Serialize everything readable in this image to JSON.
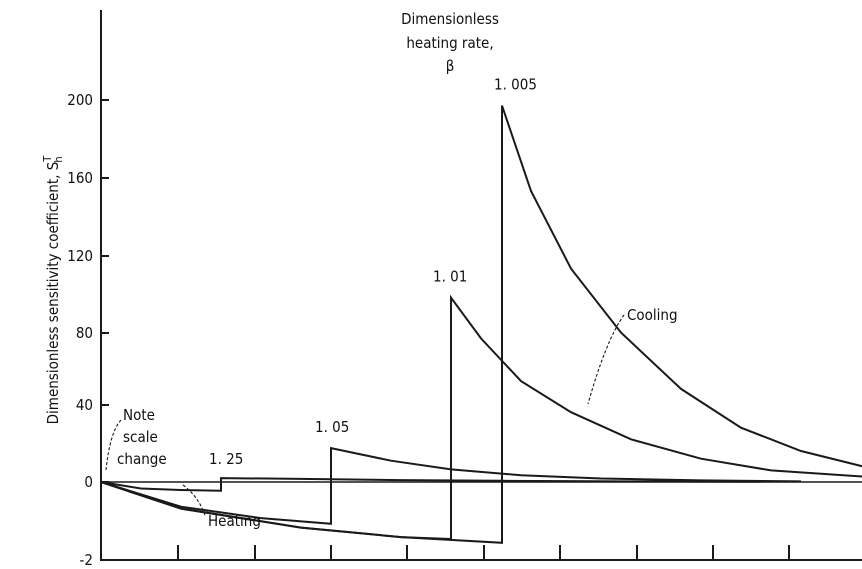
{
  "chart_data": {
    "type": "line",
    "title": "",
    "ylabel": "Dimensionless sensitivity coefficient, S",
    "ylabel_sup": "T",
    "ylabel_sub": "h",
    "ylim": [
      -2,
      220
    ],
    "yticks": [
      "200",
      "160",
      "120",
      "80",
      "40",
      "0",
      "-2"
    ],
    "legend_title": [
      "Dimensionless",
      "heating rate,",
      "β"
    ],
    "annotations": {
      "note": [
        "Note",
        "scale",
        "change"
      ],
      "heating": "Heating",
      "cooling": "Cooling"
    },
    "series": [
      {
        "name": "1. 25",
        "heating": [
          [
            0,
            0
          ],
          [
            40,
            -1.7
          ],
          [
            80,
            -2.1
          ],
          [
            120,
            -2.3
          ]
        ],
        "cooling": [
          [
            120,
            2.0
          ],
          [
            200,
            1.6
          ],
          [
            300,
            1.0
          ],
          [
            400,
            0.6
          ],
          [
            520,
            0.3
          ],
          [
            660,
            0.15
          ]
        ]
      },
      {
        "name": "1. 05",
        "heating": [
          [
            0,
            0
          ],
          [
            80,
            -6.5
          ],
          [
            160,
            -9.5
          ],
          [
            230,
            -11
          ]
        ],
        "cooling": [
          [
            230,
            17.5
          ],
          [
            290,
            11
          ],
          [
            350,
            6.5
          ],
          [
            420,
            3.5
          ],
          [
            500,
            1.8
          ],
          [
            600,
            0.8
          ],
          [
            700,
            0.3
          ]
        ]
      },
      {
        "name": "1. 01",
        "heating": [
          [
            0,
            0
          ],
          [
            80,
            -7
          ],
          [
            200,
            -12
          ],
          [
            300,
            -14.5
          ],
          [
            350,
            -15
          ]
        ],
        "cooling": [
          [
            350,
            95
          ],
          [
            380,
            74
          ],
          [
            420,
            52
          ],
          [
            470,
            36
          ],
          [
            530,
            22
          ],
          [
            600,
            12
          ],
          [
            670,
            6
          ],
          [
            770,
            2.5
          ]
        ]
      },
      {
        "name": "1. 005",
        "heating": [
          [
            0,
            0
          ],
          [
            80,
            -7
          ],
          [
            200,
            -12
          ],
          [
            300,
            -14.5
          ],
          [
            401,
            -16
          ]
        ],
        "cooling": [
          [
            401,
            194
          ],
          [
            430,
            150
          ],
          [
            470,
            110
          ],
          [
            520,
            77
          ],
          [
            580,
            48
          ],
          [
            640,
            28
          ],
          [
            700,
            16
          ],
          [
            770,
            7
          ],
          [
            862,
            2.5
          ]
        ]
      }
    ]
  }
}
